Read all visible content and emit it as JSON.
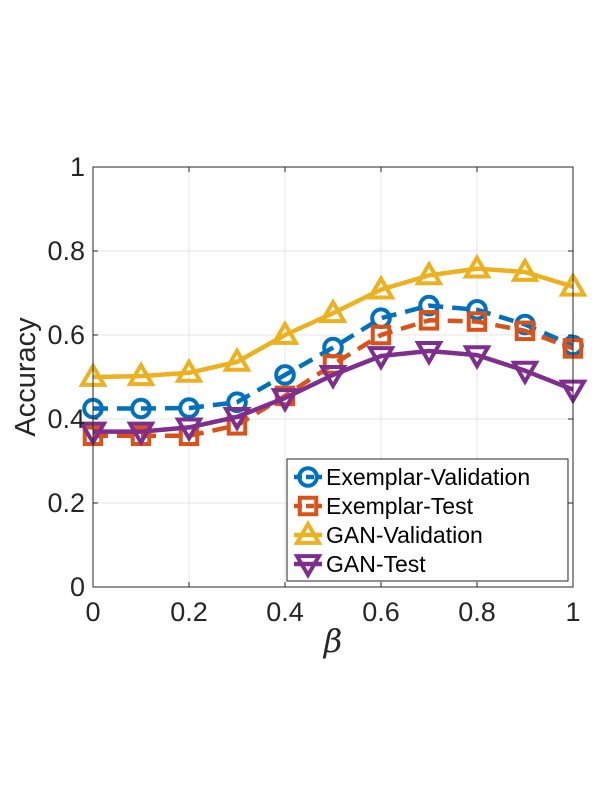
{
  "chart_data": {
    "type": "line",
    "title": "",
    "xlabel": "β",
    "ylabel": "Accuracy",
    "x": [
      0,
      0.1,
      0.2,
      0.3,
      0.4,
      0.5,
      0.6,
      0.7,
      0.8,
      0.9,
      1.0
    ],
    "xlim": [
      0,
      1
    ],
    "ylim": [
      0,
      1
    ],
    "xticks": [
      "0",
      "0.2",
      "0.4",
      "0.6",
      "0.8",
      "1"
    ],
    "yticks": [
      "0",
      "0.2",
      "0.4",
      "0.6",
      "0.8",
      "1"
    ],
    "grid": true,
    "legend_position": "bottom-right",
    "series": [
      {
        "name": "Exemplar-Validation",
        "color": "#0072BD",
        "marker": "circle",
        "line": "dashed",
        "values": [
          0.425,
          0.425,
          0.426,
          0.44,
          0.505,
          0.57,
          0.64,
          0.67,
          0.66,
          0.625,
          0.575
        ]
      },
      {
        "name": "Exemplar-Test",
        "color": "#D95319",
        "marker": "square",
        "line": "dashed",
        "values": [
          0.36,
          0.36,
          0.36,
          0.385,
          0.455,
          0.53,
          0.6,
          0.635,
          0.632,
          0.61,
          0.568
        ]
      },
      {
        "name": "GAN-Validation",
        "color": "#EDB120",
        "marker": "triangle-up",
        "line": "solid",
        "values": [
          0.5,
          0.502,
          0.51,
          0.536,
          0.6,
          0.652,
          0.708,
          0.742,
          0.758,
          0.75,
          0.715
        ]
      },
      {
        "name": "GAN-Test",
        "color": "#7E2F8E",
        "marker": "triangle-down",
        "line": "solid",
        "values": [
          0.37,
          0.37,
          0.38,
          0.405,
          0.45,
          0.505,
          0.55,
          0.562,
          0.552,
          0.515,
          0.47
        ]
      }
    ]
  }
}
